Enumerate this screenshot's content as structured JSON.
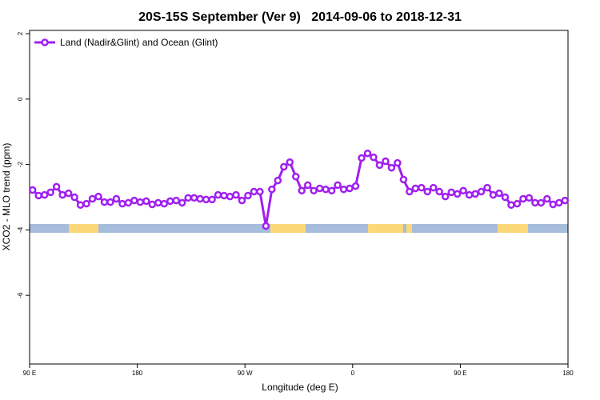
{
  "chart_data": {
    "type": "line",
    "title": "20S-15S September (Ver 9)   2014-09-06 to 2018-12-31",
    "x_label": "Longitude (deg E)",
    "y_label": "XCO2 - MLO trend (ppm)",
    "xlim": [
      90,
      540
    ],
    "ylim": [
      -8.1,
      2.1
    ],
    "xticks": [
      {
        "value": 90,
        "label": "90 E"
      },
      180,
      {
        "value": 270,
        "label": "90 W"
      },
      {
        "value": 360,
        "label": "0"
      },
      {
        "value": 450,
        "label": "90 E"
      },
      {
        "value": 540,
        "label": "180"
      }
    ],
    "yticks": [
      2,
      0,
      -2,
      -4,
      -6
    ],
    "legend": "top-left",
    "series": [
      {
        "name": "Land (Nadir&Glint) and Ocean (Glint)",
        "color": "#a020f0",
        "x": [
          92.5,
          97.5,
          102.5,
          107.5,
          112.5,
          117.5,
          122.5,
          127.5,
          132.5,
          137.5,
          142.5,
          147.5,
          152.5,
          157.5,
          162.5,
          167.5,
          172.5,
          177.5,
          182.5,
          187.5,
          192.5,
          197.5,
          202.5,
          207.5,
          212.5,
          217.5,
          222.5,
          227.5,
          232.5,
          237.5,
          242.5,
          247.5,
          252.5,
          257.5,
          262.5,
          267.5,
          272.5,
          277.5,
          282.5,
          287.5,
          292.5,
          297.5,
          302.5,
          307.5,
          312.5,
          317.5,
          322.5,
          327.5,
          332.5,
          337.5,
          342.5,
          347.5,
          352.5,
          357.5,
          362.5,
          367.5,
          372.5,
          377.5,
          382.5,
          387.5,
          392.5,
          397.5,
          402.5,
          407.5,
          412.5,
          417.5,
          422.5,
          427.5,
          432.5,
          437.5,
          442.5,
          447.5,
          452.5,
          457.5,
          462.5,
          467.5,
          472.5,
          477.5,
          482.5,
          487.5,
          492.5,
          497.5,
          502.5,
          507.5,
          512.5,
          517.5,
          522.5,
          527.5,
          532.5,
          537.5
        ],
        "values": [
          -2.78,
          -2.95,
          -2.93,
          -2.85,
          -2.68,
          -2.93,
          -2.88,
          -3.0,
          -3.24,
          -3.2,
          -3.05,
          -2.98,
          -3.15,
          -3.15,
          -3.05,
          -3.2,
          -3.17,
          -3.1,
          -3.15,
          -3.12,
          -3.22,
          -3.17,
          -3.2,
          -3.12,
          -3.1,
          -3.17,
          -3.02,
          -3.02,
          -3.05,
          -3.07,
          -3.07,
          -2.93,
          -2.95,
          -2.98,
          -2.93,
          -3.1,
          -2.95,
          -2.83,
          -2.83,
          -3.88,
          -2.76,
          -2.49,
          -2.07,
          -1.93,
          -2.37,
          -2.8,
          -2.63,
          -2.8,
          -2.73,
          -2.76,
          -2.8,
          -2.63,
          -2.76,
          -2.73,
          -2.66,
          -1.8,
          -1.66,
          -1.78,
          -2.02,
          -1.9,
          -2.1,
          -1.95,
          -2.46,
          -2.83,
          -2.73,
          -2.71,
          -2.83,
          -2.71,
          -2.83,
          -2.98,
          -2.85,
          -2.9,
          -2.8,
          -2.93,
          -2.9,
          -2.83,
          -2.71,
          -2.93,
          -2.88,
          -3.0,
          -3.24,
          -3.2,
          -3.05,
          -3.02,
          -3.17,
          -3.17,
          -3.05,
          -3.22,
          -3.17,
          -3.1
        ]
      }
    ]
  }
}
